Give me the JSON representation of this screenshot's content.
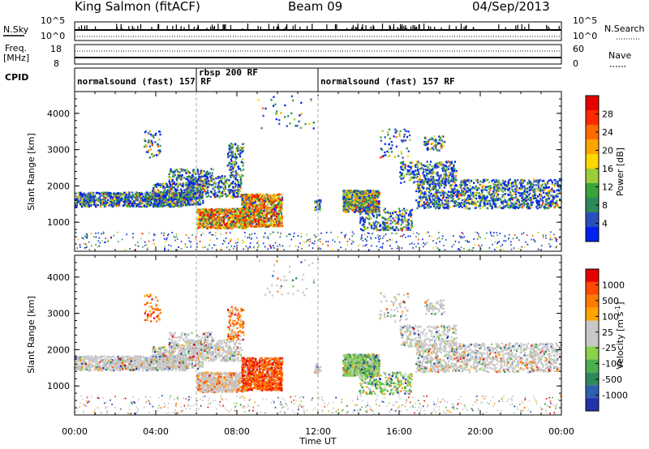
{
  "header": {
    "station": "King Salmon (fitACF)",
    "beam": "Beam 09",
    "date": "04/Sep/2013"
  },
  "top_panels": {
    "nsky_label": "N.Sky",
    "nsky_ticks": [
      "10^5",
      "10^0"
    ],
    "nsearch_label": "N.Search",
    "nsearch_ticks": [
      "10^5",
      "10^0"
    ],
    "freq_label": "Freq.",
    "freq_unit": "[MHz]",
    "freq_ticks": [
      "18",
      "8"
    ],
    "nave_label": "Nave",
    "nave_ticks": [
      "60",
      "0"
    ],
    "cpid_label": "CPID"
  },
  "cpid_segments": [
    {
      "label": "normalsound (fast) 157 RF",
      "start_h": 0,
      "end_h": 6
    },
    {
      "label": "rbsp 200 RF",
      "start_h": 6,
      "end_h": 12
    },
    {
      "label": "normalsound (fast) 157 RF",
      "start_h": 12,
      "end_h": 24
    }
  ],
  "chart_data": [
    {
      "type": "heatmap",
      "name": "power",
      "ylabel": "Slant Range [km]",
      "yticks": [
        1000,
        2000,
        3000,
        4000
      ],
      "ylim": [
        200,
        4600
      ],
      "xlim": [
        0,
        24
      ],
      "colorbar": {
        "label": "Power [dB]",
        "ticks": [
          "4",
          "8",
          "12",
          "16",
          "20",
          "24",
          "28"
        ],
        "colors": [
          "#0022ee",
          "#2a4fbd",
          "#2e8a5a",
          "#3aa33a",
          "#9ccc3a",
          "#ffd700",
          "#ffa500",
          "#ff6a00",
          "#ff2a00",
          "#e60000"
        ]
      }
    },
    {
      "type": "heatmap",
      "name": "velocity",
      "ylabel": "Slant Range [km]",
      "yticks": [
        1000,
        2000,
        3000,
        4000
      ],
      "ylim": [
        200,
        4600
      ],
      "xlim": [
        0,
        24
      ],
      "colorbar": {
        "label": "Velocity [m s",
        "label_sup": "-1",
        "label_end": "]",
        "ticks": [
          "1000",
          "500",
          "100",
          "25",
          "-25",
          "-100",
          "-500",
          "-1000"
        ],
        "colors": [
          "#2233aa",
          "#2f5fb0",
          "#2e8a5a",
          "#4caf50",
          "#8bd14a",
          "#c8c8c8",
          "#c8c8c8",
          "#ffa500",
          "#ff7a00",
          "#ff4a00",
          "#e60000"
        ]
      }
    }
  ],
  "xaxis": {
    "ticks": [
      "00:00",
      "04:00",
      "08:00",
      "12:00",
      "16:00",
      "20:00",
      "00:00"
    ],
    "label": "Time UT"
  }
}
